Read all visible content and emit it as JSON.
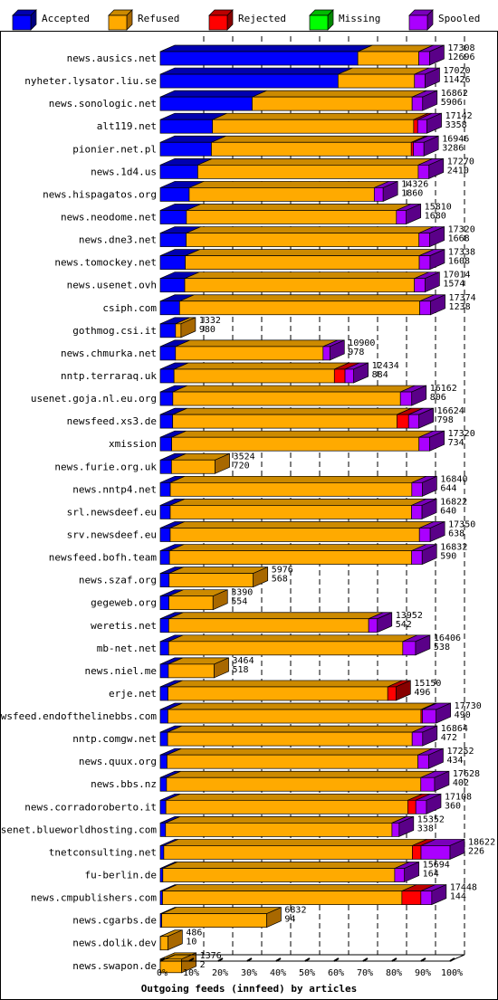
{
  "chart_data": {
    "type": "bar",
    "stacked": true,
    "orientation": "horizontal",
    "title": "",
    "xlabel": "Outgoing feeds (innfeed) by articles",
    "ylabel": "",
    "xlim": [
      0,
      100
    ],
    "x_ticks": [
      "0%",
      "10%",
      "20%",
      "30%",
      "40%",
      "50%",
      "60%",
      "70%",
      "80%",
      "90%",
      "100%"
    ],
    "legend_position": "top",
    "legend": [
      {
        "name": "Accepted",
        "color": "#0000ff"
      },
      {
        "name": "Refused",
        "color": "#ffaa00"
      },
      {
        "name": "Rejected",
        "color": "#ff0000"
      },
      {
        "name": "Missing",
        "color": "#00ff00"
      },
      {
        "name": "Spooled",
        "color": "#aa00ff"
      }
    ],
    "rows": [
      {
        "label": "news.ausics.net",
        "total": "17308",
        "accepted": "12696",
        "ta": 17308,
        "acc": 12696,
        "rej": 0,
        "spo": 4
      },
      {
        "label": "nyheter.lysator.liu.se",
        "total": "17020",
        "accepted": "11426",
        "ta": 17020,
        "acc": 11426,
        "rej": 0,
        "spo": 4
      },
      {
        "label": "news.sonologic.net",
        "total": "16862",
        "accepted": "5906",
        "ta": 16862,
        "acc": 5906,
        "rej": 0,
        "spo": 4
      },
      {
        "label": "alt119.net",
        "total": "17142",
        "accepted": "3358",
        "ta": 17142,
        "acc": 3358,
        "rej": 1.5,
        "spo": 3.5
      },
      {
        "label": "pionier.net.pl",
        "total": "16946",
        "accepted": "3286",
        "ta": 16946,
        "acc": 3286,
        "rej": 0.8,
        "spo": 4
      },
      {
        "label": "news.1d4.us",
        "total": "17270",
        "accepted": "2410",
        "ta": 17270,
        "acc": 2410,
        "rej": 0,
        "spo": 4
      },
      {
        "label": "news.hispagatos.org",
        "total": "14326",
        "accepted": "1860",
        "ta": 14326,
        "acc": 1860,
        "rej": 0,
        "spo": 4
      },
      {
        "label": "news.neodome.net",
        "total": "15810",
        "accepted": "1680",
        "ta": 15810,
        "acc": 1680,
        "rej": 0,
        "spo": 4
      },
      {
        "label": "news.dne3.net",
        "total": "17320",
        "accepted": "1668",
        "ta": 17320,
        "acc": 1668,
        "rej": 0,
        "spo": 4
      },
      {
        "label": "news.tomockey.net",
        "total": "17338",
        "accepted": "1608",
        "ta": 17338,
        "acc": 1608,
        "rej": 0,
        "spo": 4
      },
      {
        "label": "news.usenet.ovh",
        "total": "17014",
        "accepted": "1574",
        "ta": 17014,
        "acc": 1574,
        "rej": 0,
        "spo": 4
      },
      {
        "label": "csiph.com",
        "total": "17374",
        "accepted": "1238",
        "ta": 17374,
        "acc": 1238,
        "rej": 0,
        "spo": 4
      },
      {
        "label": "gothmog.csi.it",
        "total": "1332",
        "accepted": "980",
        "ta": 1332,
        "acc": 980,
        "rej": 0,
        "spo": 0
      },
      {
        "label": "news.chmurka.net",
        "total": "10900",
        "accepted": "978",
        "ta": 10900,
        "acc": 978,
        "rej": 0,
        "spo": 4
      },
      {
        "label": "nntp.terraraq.uk",
        "total": "12434",
        "accepted": "884",
        "ta": 12434,
        "acc": 884,
        "rej": 5.5,
        "spo": 4.5
      },
      {
        "label": "usenet.goja.nl.eu.org",
        "total": "16162",
        "accepted": "806",
        "ta": 16162,
        "acc": 806,
        "rej": 0,
        "spo": 4.5
      },
      {
        "label": "newsfeed.xs3.de",
        "total": "16624",
        "accepted": "798",
        "ta": 16624,
        "acc": 798,
        "rej": 4.5,
        "spo": 4
      },
      {
        "label": "xmission",
        "total": "17320",
        "accepted": "734",
        "ta": 17320,
        "acc": 734,
        "rej": 0,
        "spo": 4
      },
      {
        "label": "news.furie.org.uk",
        "total": "3524",
        "accepted": "720",
        "ta": 3524,
        "acc": 720,
        "rej": 0,
        "spo": 0
      },
      {
        "label": "news.nntp4.net",
        "total": "16840",
        "accepted": "644",
        "ta": 16840,
        "acc": 644,
        "rej": 0,
        "spo": 4
      },
      {
        "label": "srl.newsdeef.eu",
        "total": "16822",
        "accepted": "640",
        "ta": 16822,
        "acc": 640,
        "rej": 0,
        "spo": 4
      },
      {
        "label": "srv.newsdeef.eu",
        "total": "17350",
        "accepted": "638",
        "ta": 17350,
        "acc": 638,
        "rej": 0,
        "spo": 4
      },
      {
        "label": "newsfeed.bofh.team",
        "total": "16832",
        "accepted": "590",
        "ta": 16832,
        "acc": 590,
        "rej": 0,
        "spo": 4
      },
      {
        "label": "news.szaf.org",
        "total": "5976",
        "accepted": "568",
        "ta": 5976,
        "acc": 568,
        "rej": 0,
        "spo": 0
      },
      {
        "label": "gegeweb.org",
        "total": "3390",
        "accepted": "554",
        "ta": 3390,
        "acc": 554,
        "rej": 0,
        "spo": 0
      },
      {
        "label": "weretis.net",
        "total": "13952",
        "accepted": "542",
        "ta": 13952,
        "acc": 542,
        "rej": 0,
        "spo": 4
      },
      {
        "label": "mb-net.net",
        "total": "16406",
        "accepted": "538",
        "ta": 16406,
        "acc": 538,
        "rej": 0,
        "spo": 5
      },
      {
        "label": "news.niel.me",
        "total": "3464",
        "accepted": "518",
        "ta": 3464,
        "acc": 518,
        "rej": 0,
        "spo": 0
      },
      {
        "label": "erje.net",
        "total": "15150",
        "accepted": "496",
        "ta": 15150,
        "acc": 496,
        "rej": 3.5,
        "spo": 0
      },
      {
        "label": "newsfeed.endofthelinebbs.com",
        "total": "17730",
        "accepted": "490",
        "ta": 17730,
        "acc": 490,
        "rej": 0.5,
        "spo": 5
      },
      {
        "label": "nntp.comgw.net",
        "total": "16864",
        "accepted": "472",
        "ta": 16864,
        "acc": 472,
        "rej": 0,
        "spo": 4
      },
      {
        "label": "news.quux.org",
        "total": "17252",
        "accepted": "434",
        "ta": 17252,
        "acc": 434,
        "rej": 0,
        "spo": 4
      },
      {
        "label": "news.bbs.nz",
        "total": "17628",
        "accepted": "402",
        "ta": 17628,
        "acc": 402,
        "rej": 0,
        "spo": 5
      },
      {
        "label": "news.corradoroberto.it",
        "total": "17108",
        "accepted": "360",
        "ta": 17108,
        "acc": 360,
        "rej": 3,
        "spo": 4
      },
      {
        "label": "usenet.blueworldhosting.com",
        "total": "15352",
        "accepted": "338",
        "ta": 15352,
        "acc": 338,
        "rej": 0,
        "spo": 3
      },
      {
        "label": "tnetconsulting.net",
        "total": "18622",
        "accepted": "226",
        "ta": 18622,
        "acc": 226,
        "rej": 3,
        "spo": 10
      },
      {
        "label": "fu-berlin.de",
        "total": "15694",
        "accepted": "164",
        "ta": 15694,
        "acc": 164,
        "rej": 0,
        "spo": 4
      },
      {
        "label": "news.cmpublishers.com",
        "total": "17448",
        "accepted": "144",
        "ta": 17448,
        "acc": 144,
        "rej": 7,
        "spo": 4
      },
      {
        "label": "news.cgarbs.de",
        "total": "6832",
        "accepted": "94",
        "ta": 6832,
        "acc": 94,
        "rej": 0,
        "spo": 0
      },
      {
        "label": "news.dolik.dev",
        "total": "486",
        "accepted": "10",
        "ta": 486,
        "acc": 10,
        "rej": 0,
        "spo": 0
      },
      {
        "label": "news.swapon.de",
        "total": "1376",
        "accepted": "2",
        "ta": 1376,
        "acc": 2,
        "rej": 0,
        "spo": 0
      }
    ]
  }
}
